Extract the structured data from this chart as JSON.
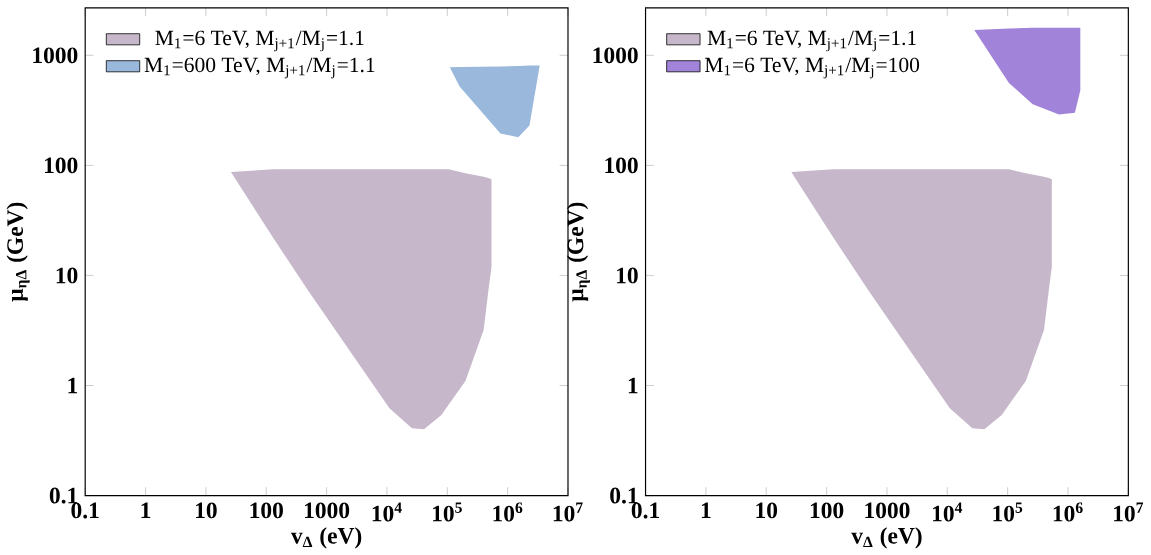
{
  "chart_data": [
    {
      "type": "area",
      "log": "xy",
      "legend": "top left",
      "grid": false,
      "xlabel": "v$_{Δ}$ (eV)",
      "ylabel": "μ$_{ηΔ}$ (GeV)",
      "xlim": [
        0.1,
        10000000
      ],
      "ylim": [
        0.1,
        2700
      ],
      "xticks": [
        0.1,
        1,
        10,
        100,
        1000,
        {
          "value": 10000,
          "label": "10$^{4}$"
        },
        {
          "value": 100000,
          "label": "10$^{5}$"
        },
        {
          "value": 1000000,
          "label": "10$^{6}$"
        },
        {
          "value": 10000000,
          "label": "10$^{7}$"
        }
      ],
      "yticks": [
        0.1,
        1,
        10,
        100,
        1000
      ],
      "series": [
        {
          "name": "M$_{1}$=6 TeV, M$_{j+1}$/M$_{j}$=1.1",
          "color": "#c6b7cb",
          "x": [
            26,
            130,
            510,
            11000,
            26000,
            41000,
            80000,
            105000,
            200000,
            400000,
            480000,
            540000
          ],
          "values": [
            null,
            null,
            null,
            null,
            null,
            null,
            null,
            null,
            null,
            null,
            null,
            null
          ],
          "upper": [
            87,
            92,
            92,
            92,
            92,
            92,
            92,
            92,
            85,
            79,
            77,
            75
          ],
          "lower": [
            87,
            22,
            7.1,
            0.62,
            0.41,
            0.4,
            0.54,
            0.67,
            1.1,
            3.2,
            7.3,
            12
          ]
        },
        {
          "name": "M$_{1}$=600 TeV, M$_{j+1}$/M$_{j}$=1.1",
          "color": "#9ab8dc",
          "x": [
            110000,
            160000,
            760000,
            1500000,
            2300000,
            3400000
          ],
          "values": [
            null,
            null,
            null,
            null,
            null,
            null
          ],
          "upper": [
            780,
            785,
            790,
            800,
            810,
            810
          ],
          "lower": [
            780,
            520,
            195,
            180,
            230,
            810
          ]
        }
      ]
    },
    {
      "type": "area",
      "log": "xy",
      "legend": "top left",
      "grid": false,
      "xlabel": "v$_{Δ}$ (eV)",
      "ylabel": "μ$_{ηΔ}$ (GeV)",
      "xlim": [
        0.1,
        10000000
      ],
      "ylim": [
        0.1,
        2700
      ],
      "xticks": [
        0.1,
        1,
        10,
        100,
        1000,
        {
          "value": 10000,
          "label": "10$^{4}$"
        },
        {
          "value": 100000,
          "label": "10$^{5}$"
        },
        {
          "value": 1000000,
          "label": "10$^{6}$"
        },
        {
          "value": 10000000,
          "label": "10$^{7}$"
        }
      ],
      "yticks": [
        0.1,
        1,
        10,
        100,
        1000
      ],
      "series": [
        {
          "name": "M$_{1}$=6 TeV, M$_{j+1}$/M$_{j}$=1.1",
          "color": "#c6b7cb",
          "x": [
            26,
            130,
            510,
            11000,
            26000,
            41000,
            80000,
            105000,
            200000,
            400000,
            480000,
            540000
          ],
          "values": [
            null,
            null,
            null,
            null,
            null,
            null,
            null,
            null,
            null,
            null,
            null,
            null
          ],
          "upper": [
            87,
            92,
            92,
            92,
            92,
            92,
            92,
            92,
            85,
            79,
            77,
            75
          ],
          "lower": [
            87,
            22,
            7.1,
            0.62,
            0.41,
            0.4,
            0.54,
            0.67,
            1.1,
            3.2,
            7.3,
            12
          ]
        },
        {
          "name": "M$_{1}$=6 TeV, M$_{j+1}$/M$_{j}$=100",
          "color": "#a183d9",
          "x": [
            28000,
            105000,
            260000,
            710000,
            1300000,
            1600000
          ],
          "values": [
            null,
            null,
            null,
            null,
            null,
            null
          ],
          "upper": [
            1700,
            1750,
            1780,
            1780,
            1780,
            1780
          ],
          "lower": [
            1700,
            560,
            360,
            290,
            300,
            480
          ]
        }
      ]
    }
  ]
}
